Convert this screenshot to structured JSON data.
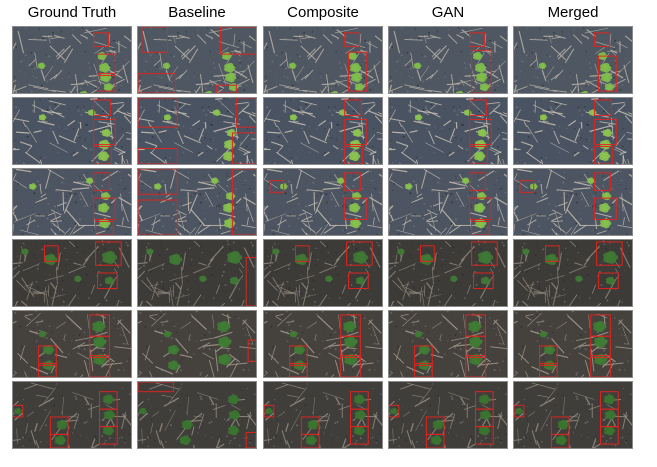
{
  "columns": [
    "Ground Truth",
    "Baseline",
    "Composite",
    "GAN",
    "Merged"
  ],
  "rows": [
    {
      "soil": "#4f5763",
      "residue": "#b9b3a6",
      "plant": "#7fbf4a"
    },
    {
      "soil": "#4a5362",
      "residue": "#c8c2b4",
      "plant": "#8cc54f"
    },
    {
      "soil": "#4d5562",
      "residue": "#c3bcae",
      "plant": "#86c24c"
    },
    {
      "soil": "#3d3b38",
      "residue": "#8f877c",
      "plant": "#3f7a34"
    },
    {
      "soil": "#45423e",
      "residue": "#a49b8d",
      "plant": "#3e7d33"
    },
    {
      "soil": "#403e3a",
      "residue": "#978f84",
      "plant": "#3a7530"
    }
  ],
  "box_color": "#e0241e"
}
